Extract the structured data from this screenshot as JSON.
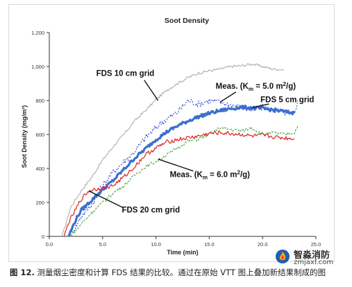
{
  "chart_data": {
    "type": "line",
    "title": "Soot Density",
    "xlabel": "Time (min)",
    "ylabel": "Soot Density (mg/m³)",
    "xlim": [
      0,
      25
    ],
    "ylim": [
      0,
      1200
    ],
    "xticks": [
      "0.0",
      "5.0",
      "10.0",
      "15.0",
      "20.0",
      "25.0"
    ],
    "yticks": [
      "0",
      "200",
      "400",
      "600",
      "800",
      "1,000",
      "1,200"
    ],
    "grid": false,
    "series": [
      {
        "key": "fds10",
        "color": "#a6a6a6",
        "width": 1,
        "dash": "",
        "noise": 8,
        "points": [
          [
            1.2,
            0
          ],
          [
            2,
            170
          ],
          [
            3,
            270
          ],
          [
            4,
            350
          ],
          [
            5,
            450
          ],
          [
            6,
            530
          ],
          [
            7,
            600
          ],
          [
            8,
            680
          ],
          [
            9,
            740
          ],
          [
            10,
            805
          ],
          [
            11,
            860
          ],
          [
            12,
            900
          ],
          [
            13,
            935
          ],
          [
            14,
            962
          ],
          [
            15,
            975
          ],
          [
            16,
            985
          ],
          [
            17,
            1000
          ],
          [
            18,
            1005
          ],
          [
            19,
            1015
          ],
          [
            20,
            1000
          ],
          [
            21,
            985
          ],
          [
            22,
            982
          ]
        ]
      },
      {
        "key": "meas5",
        "color": "#2233cc",
        "width": 1,
        "dash": "2 2",
        "noise": 20,
        "points": [
          [
            1.8,
            0
          ],
          [
            2.5,
            60
          ],
          [
            3,
            120
          ],
          [
            4,
            190
          ],
          [
            5,
            300
          ],
          [
            6,
            380
          ],
          [
            7,
            440
          ],
          [
            8,
            500
          ],
          [
            9,
            580
          ],
          [
            10,
            640
          ],
          [
            10.5,
            670
          ],
          [
            11,
            690
          ],
          [
            12,
            730
          ],
          [
            13,
            800
          ],
          [
            14,
            780
          ],
          [
            15,
            800
          ],
          [
            16,
            790
          ],
          [
            17,
            775
          ],
          [
            18,
            760
          ],
          [
            19,
            740
          ],
          [
            20,
            760
          ],
          [
            21,
            745
          ],
          [
            22,
            730
          ],
          [
            23,
            720
          ],
          [
            23.3,
            800
          ]
        ]
      },
      {
        "key": "fds5",
        "color": "#3a6fcf",
        "width": 3.2,
        "dash": "",
        "noise": 10,
        "points": [
          [
            1.8,
            0
          ],
          [
            2.5,
            100
          ],
          [
            3,
            155
          ],
          [
            4,
            215
          ],
          [
            5,
            275
          ],
          [
            6,
            330
          ],
          [
            7,
            395
          ],
          [
            8,
            460
          ],
          [
            9,
            515
          ],
          [
            10,
            570
          ],
          [
            11,
            615
          ],
          [
            12,
            650
          ],
          [
            13,
            680
          ],
          [
            14,
            705
          ],
          [
            15,
            725
          ],
          [
            16,
            740
          ],
          [
            17,
            752
          ],
          [
            18,
            760
          ],
          [
            19,
            757
          ],
          [
            20,
            752
          ],
          [
            21,
            745
          ],
          [
            22,
            735
          ],
          [
            23,
            725
          ]
        ]
      },
      {
        "key": "meas6",
        "color": "#2e9a2e",
        "width": 1,
        "dash": "3 2",
        "noise": 10,
        "points": [
          [
            1.8,
            0
          ],
          [
            2.5,
            35
          ],
          [
            3,
            75
          ],
          [
            4,
            140
          ],
          [
            5,
            200
          ],
          [
            6,
            255
          ],
          [
            7,
            300
          ],
          [
            8,
            360
          ],
          [
            9,
            410
          ],
          [
            10,
            440
          ],
          [
            11,
            480
          ],
          [
            12,
            520
          ],
          [
            13,
            560
          ],
          [
            14,
            575
          ],
          [
            15,
            600
          ],
          [
            16,
            640
          ],
          [
            17,
            630
          ],
          [
            18,
            620
          ],
          [
            19,
            640
          ],
          [
            20,
            600
          ],
          [
            21,
            610
          ],
          [
            22,
            600
          ],
          [
            23,
            610
          ],
          [
            23.3,
            650
          ]
        ]
      },
      {
        "key": "fds20",
        "color": "#e02020",
        "width": 1.2,
        "dash": "",
        "noise": 12,
        "points": [
          [
            1.4,
            0
          ],
          [
            1.8,
            80
          ],
          [
            2.5,
            160
          ],
          [
            3,
            220
          ],
          [
            3.6,
            262
          ],
          [
            4,
            275
          ],
          [
            5,
            285
          ],
          [
            6,
            300
          ],
          [
            7,
            350
          ],
          [
            8,
            410
          ],
          [
            9,
            480
          ],
          [
            10,
            520
          ],
          [
            11,
            555
          ],
          [
            12,
            570
          ],
          [
            13,
            580
          ],
          [
            14,
            590
          ],
          [
            15,
            605
          ],
          [
            16,
            610
          ],
          [
            17,
            605
          ],
          [
            18,
            600
          ],
          [
            19,
            590
          ],
          [
            20,
            595
          ],
          [
            21,
            585
          ],
          [
            22,
            580
          ],
          [
            23,
            575
          ]
        ]
      }
    ],
    "annotations": [
      {
        "key": "fds10",
        "text": "FDS 10 cm grid",
        "label_x": 4.4,
        "label_y": 945,
        "arrow_from": [
          8.9,
          920
        ],
        "arrow_to": [
          10.2,
          800
        ]
      },
      {
        "key": "meas5",
        "text": "Meas. (K",
        "sub": "m",
        "mid": " = 5.0 m",
        "sup": "2",
        "end": "/g)",
        "label_x": 15.6,
        "label_y": 870,
        "arrow_from": [
          17.5,
          850
        ],
        "arrow_to": [
          16.0,
          790
        ]
      },
      {
        "key": "fds5",
        "text": "FDS 5 cm grid",
        "label_x": 19.8,
        "label_y": 790,
        "arrow_from": [
          20.6,
          780
        ],
        "arrow_to": [
          19.0,
          757
        ]
      },
      {
        "key": "meas6",
        "text": "Meas. (K",
        "sub": "m",
        "mid": " = 6.0 m",
        "sup": "2",
        "end": "/g)",
        "label_x": 11.3,
        "label_y": 350,
        "arrow_from": [
          13.5,
          385
        ],
        "arrow_to": [
          10.2,
          455
        ]
      },
      {
        "key": "fds20",
        "text": "FDS 20 cm grid",
        "label_x": 6.8,
        "label_y": 140,
        "arrow_from": [
          6.9,
          170
        ],
        "arrow_to": [
          3.7,
          268
        ]
      }
    ]
  },
  "caption": {
    "figure_label": "图 12.",
    "text": "测量烟尘密度和计算 FDS 结果的比较。通过在原始 VTT 图上叠加新结果制成的图"
  },
  "watermark": {
    "name": "智淼消防",
    "site": "zmjaxf.com"
  }
}
